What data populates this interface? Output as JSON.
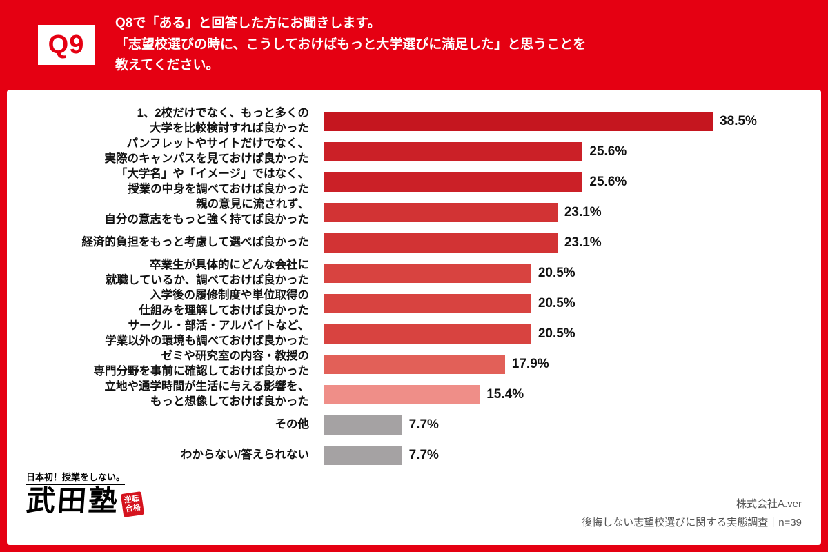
{
  "colors": {
    "background": "#e50012",
    "panel": "#ffffff",
    "badge_bg": "#ffffff",
    "badge_text": "#e50012",
    "value_text": "#111111",
    "footer_text": "#555555",
    "gray_bar": "#a5a2a3"
  },
  "header": {
    "badge": "Q9",
    "question_lines": [
      "Q8で「ある」と回答した方にお聞きします。",
      "「志望校選びの時に、こうしておけばもっと大学選びに満足した」と思うことを",
      "教えてください。"
    ]
  },
  "chart_data": {
    "type": "bar",
    "orientation": "horizontal",
    "title": "",
    "xlabel": "",
    "ylabel": "",
    "unit": "%",
    "xlim": [
      0,
      40
    ],
    "grid": false,
    "legend": false,
    "categories": [
      "1、2校だけでなく、もっと多くの大学を比較検討すれば良かった",
      "パンフレットやサイトだけでなく、実際のキャンパスを見ておけば良かった",
      "「大学名」や「イメージ」ではなく、授業の中身を調べておけば良かった",
      "親の意見に流されず、自分の意志をもっと強く持てば良かった",
      "経済的負担をもっと考慮して選べば良かった",
      "卒業生が具体的にどんな会社に就職しているか、調べておけば良かった",
      "入学後の履修制度や単位取得の仕組みを理解しておけば良かった",
      "サークル・部活・アルバイトなど、学業以外の環境も調べておけば良かった",
      "ゼミや研究室の内容・教授の専門分野を事前に確認しておけば良かった",
      "立地や通学時間が生活に与える影響を、もっと想像しておけば良かった",
      "その他",
      "わからない/答えられない"
    ],
    "values": [
      38.5,
      25.6,
      25.6,
      23.1,
      23.1,
      20.5,
      20.5,
      20.5,
      17.9,
      15.4,
      7.7,
      7.7
    ],
    "items": [
      {
        "label_lines": [
          "1、2校だけでなく、もっと多くの",
          "大学を比較検討すれば良かった"
        ],
        "value": 38.5,
        "display": "38.5%",
        "color": "#c5161f"
      },
      {
        "label_lines": [
          "パンフレットやサイトだけでなく、",
          "実際のキャンパスを見ておけば良かった"
        ],
        "value": 25.6,
        "display": "25.6%",
        "color": "#cb2027"
      },
      {
        "label_lines": [
          "「大学名」や「イメージ」ではなく、",
          "授業の中身を調べておけば良かった"
        ],
        "value": 25.6,
        "display": "25.6%",
        "color": "#cb2027"
      },
      {
        "label_lines": [
          "親の意見に流されず、",
          "自分の意志をもっと強く持てば良かった"
        ],
        "value": 23.1,
        "display": "23.1%",
        "color": "#d23334"
      },
      {
        "label_lines": [
          "経済的負担をもっと考慮して選べば良かった"
        ],
        "value": 23.1,
        "display": "23.1%",
        "color": "#d23334"
      },
      {
        "label_lines": [
          "卒業生が具体的にどんな会社に",
          "就職しているか、調べておけば良かった"
        ],
        "value": 20.5,
        "display": "20.5%",
        "color": "#d84340"
      },
      {
        "label_lines": [
          "入学後の履修制度や単位取得の",
          "仕組みを理解しておけば良かった"
        ],
        "value": 20.5,
        "display": "20.5%",
        "color": "#d84340"
      },
      {
        "label_lines": [
          "サークル・部活・アルバイトなど、",
          "学業以外の環境も調べておけば良かった"
        ],
        "value": 20.5,
        "display": "20.5%",
        "color": "#d84340"
      },
      {
        "label_lines": [
          "ゼミや研究室の内容・教授の",
          "専門分野を事前に確認しておけば良かった"
        ],
        "value": 17.9,
        "display": "17.9%",
        "color": "#e26058"
      },
      {
        "label_lines": [
          "立地や通学時間が生活に与える影響を、",
          "もっと想像しておけば良かった"
        ],
        "value": 15.4,
        "display": "15.4%",
        "color": "#ef8e88"
      },
      {
        "label_lines": [
          "その他"
        ],
        "value": 7.7,
        "display": "7.7%",
        "color": "#a5a2a3"
      },
      {
        "label_lines": [
          "わからない/答えられない"
        ],
        "value": 7.7,
        "display": "7.7%",
        "color": "#a5a2a3"
      }
    ]
  },
  "footer": {
    "tagline": "日本初！授業をしない。",
    "logo": "武田塾",
    "seal_lines": [
      "逆転",
      "合格"
    ],
    "company": "株式会社A.ver",
    "survey": "後悔しない志望校選びに関する実態調査｜n=39"
  }
}
